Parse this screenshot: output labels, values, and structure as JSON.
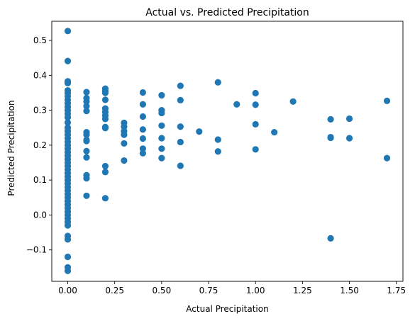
{
  "chart_data": {
    "type": "scatter",
    "title": "Actual vs. Predicted Precipitation",
    "xlabel": "Actual Precipitation",
    "ylabel": "Predicted Precipitation",
    "xlim": [
      -0.085,
      1.785
    ],
    "ylim": [
      -0.19,
      0.555
    ],
    "xticks": [
      0.0,
      0.25,
      0.5,
      0.75,
      1.0,
      1.25,
      1.5,
      1.75
    ],
    "xtick_labels": [
      "0.00",
      "0.25",
      "0.50",
      "0.75",
      "1.00",
      "1.25",
      "1.50",
      "1.75"
    ],
    "yticks": [
      -0.1,
      0.0,
      0.1,
      0.2,
      0.3,
      0.4,
      0.5
    ],
    "ytick_labels": [
      "−0.1",
      "0.0",
      "0.1",
      "0.2",
      "0.3",
      "0.4",
      "0.5"
    ],
    "grid": false,
    "marker_color": "#1f77b4",
    "points": [
      [
        0.0,
        0.527
      ],
      [
        0.0,
        0.441
      ],
      [
        0.0,
        0.383
      ],
      [
        0.0,
        0.378
      ],
      [
        0.0,
        0.357
      ],
      [
        0.0,
        0.35
      ],
      [
        0.0,
        0.34
      ],
      [
        0.0,
        0.33
      ],
      [
        0.0,
        0.32
      ],
      [
        0.0,
        0.31
      ],
      [
        0.0,
        0.3
      ],
      [
        0.0,
        0.29
      ],
      [
        0.0,
        0.28
      ],
      [
        0.0,
        0.265
      ],
      [
        0.0,
        0.25
      ],
      [
        0.0,
        0.24
      ],
      [
        0.0,
        0.23
      ],
      [
        0.0,
        0.22
      ],
      [
        0.0,
        0.21
      ],
      [
        0.0,
        0.2
      ],
      [
        0.0,
        0.19
      ],
      [
        0.0,
        0.18
      ],
      [
        0.0,
        0.17
      ],
      [
        0.0,
        0.16
      ],
      [
        0.0,
        0.15
      ],
      [
        0.0,
        0.14
      ],
      [
        0.0,
        0.13
      ],
      [
        0.0,
        0.12
      ],
      [
        0.0,
        0.11
      ],
      [
        0.0,
        0.1
      ],
      [
        0.0,
        0.09
      ],
      [
        0.0,
        0.08
      ],
      [
        0.0,
        0.07
      ],
      [
        0.0,
        0.06
      ],
      [
        0.0,
        0.05
      ],
      [
        0.0,
        0.04
      ],
      [
        0.0,
        0.03
      ],
      [
        0.0,
        0.02
      ],
      [
        0.0,
        0.01
      ],
      [
        0.0,
        0.0
      ],
      [
        0.0,
        -0.01
      ],
      [
        0.0,
        -0.02
      ],
      [
        0.0,
        -0.03
      ],
      [
        0.0,
        -0.06
      ],
      [
        0.0,
        -0.07
      ],
      [
        0.0,
        -0.12
      ],
      [
        0.0,
        -0.15
      ],
      [
        0.0,
        -0.16
      ],
      [
        0.1,
        0.352
      ],
      [
        0.1,
        0.335
      ],
      [
        0.1,
        0.325
      ],
      [
        0.1,
        0.312
      ],
      [
        0.1,
        0.298
      ],
      [
        0.1,
        0.237
      ],
      [
        0.1,
        0.23
      ],
      [
        0.1,
        0.215
      ],
      [
        0.1,
        0.212
      ],
      [
        0.1,
        0.183
      ],
      [
        0.1,
        0.165
      ],
      [
        0.1,
        0.114
      ],
      [
        0.1,
        0.105
      ],
      [
        0.1,
        0.055
      ],
      [
        0.2,
        0.362
      ],
      [
        0.2,
        0.355
      ],
      [
        0.2,
        0.35
      ],
      [
        0.2,
        0.33
      ],
      [
        0.2,
        0.305
      ],
      [
        0.2,
        0.295
      ],
      [
        0.2,
        0.285
      ],
      [
        0.2,
        0.275
      ],
      [
        0.2,
        0.252
      ],
      [
        0.2,
        0.249
      ],
      [
        0.2,
        0.14
      ],
      [
        0.2,
        0.123
      ],
      [
        0.2,
        0.048
      ],
      [
        0.3,
        0.264
      ],
      [
        0.3,
        0.253
      ],
      [
        0.3,
        0.24
      ],
      [
        0.3,
        0.23
      ],
      [
        0.3,
        0.205
      ],
      [
        0.3,
        0.156
      ],
      [
        0.4,
        0.351
      ],
      [
        0.4,
        0.317
      ],
      [
        0.4,
        0.282
      ],
      [
        0.4,
        0.245
      ],
      [
        0.4,
        0.219
      ],
      [
        0.4,
        0.19
      ],
      [
        0.4,
        0.177
      ],
      [
        0.5,
        0.343
      ],
      [
        0.5,
        0.3
      ],
      [
        0.5,
        0.292
      ],
      [
        0.5,
        0.256
      ],
      [
        0.5,
        0.22
      ],
      [
        0.5,
        0.19
      ],
      [
        0.5,
        0.163
      ],
      [
        0.6,
        0.37
      ],
      [
        0.6,
        0.329
      ],
      [
        0.6,
        0.253
      ],
      [
        0.6,
        0.209
      ],
      [
        0.6,
        0.141
      ],
      [
        0.7,
        0.239
      ],
      [
        0.8,
        0.38
      ],
      [
        0.8,
        0.216
      ],
      [
        0.8,
        0.182
      ],
      [
        0.9,
        0.317
      ],
      [
        1.0,
        0.349
      ],
      [
        1.0,
        0.316
      ],
      [
        1.0,
        0.26
      ],
      [
        1.0,
        0.188
      ],
      [
        1.1,
        0.237
      ],
      [
        1.2,
        0.325
      ],
      [
        1.4,
        0.274
      ],
      [
        1.4,
        0.223
      ],
      [
        1.4,
        0.221
      ],
      [
        1.4,
        -0.067
      ],
      [
        1.5,
        0.276
      ],
      [
        1.5,
        0.22
      ],
      [
        1.7,
        0.327
      ],
      [
        1.7,
        0.163
      ]
    ]
  }
}
